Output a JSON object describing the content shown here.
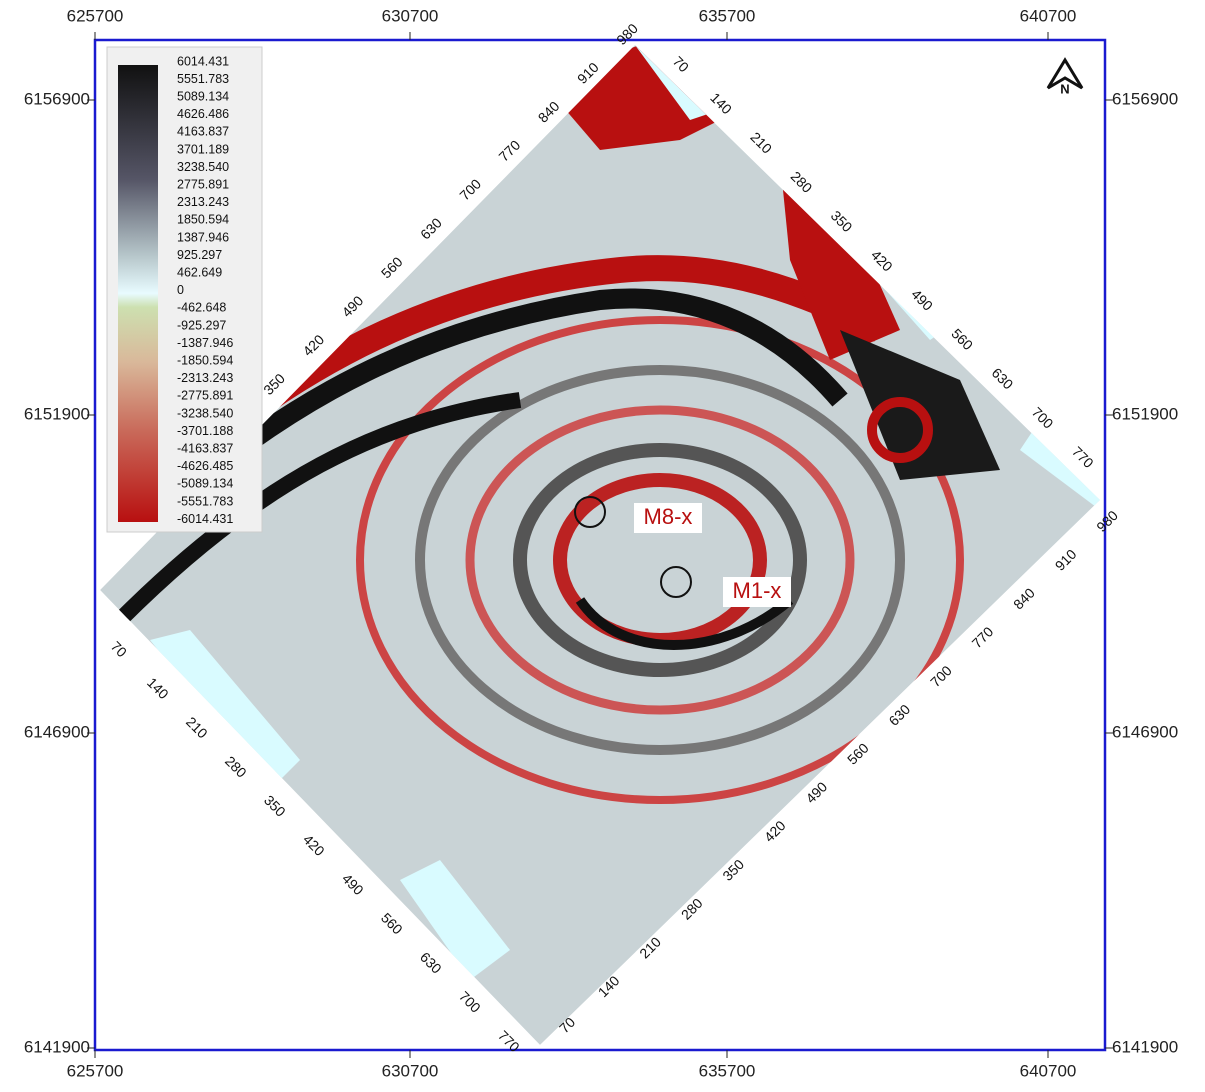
{
  "axes": {
    "top": [
      "625700",
      "630700",
      "635700",
      "640700"
    ],
    "bottom": [
      "625700",
      "630700",
      "635700",
      "640700"
    ],
    "left": [
      "6156900",
      "6151900",
      "6146900",
      "6141900"
    ],
    "right": [
      "6156900",
      "6151900",
      "6146900",
      "6141900"
    ]
  },
  "legend": [
    "6014.431",
    "5551.783",
    "5089.134",
    "4626.486",
    "4163.837",
    "3701.189",
    "3238.540",
    "2775.891",
    "2313.243",
    "1850.594",
    "1387.946",
    "925.297",
    "462.649",
    "0",
    "-462.648",
    "-925.297",
    "-1387.946",
    "-1850.594",
    "-2313.243",
    "-2775.891",
    "-3238.540",
    "-3701.188",
    "-4163.837",
    "-4626.485",
    "-5089.134",
    "-5551.783",
    "-6014.431"
  ],
  "north": "N",
  "wells": [
    {
      "label": "M8-x"
    },
    {
      "label": "M1-x"
    }
  ],
  "edge_labels": {
    "nw": [
      "350",
      "420",
      "490",
      "560",
      "630",
      "700",
      "770",
      "840",
      "910",
      "980"
    ],
    "ne": [
      "70",
      "140",
      "210",
      "280",
      "350",
      "420",
      "490",
      "560",
      "630",
      "700",
      "770"
    ],
    "se": [
      "980",
      "910",
      "840",
      "770",
      "700",
      "630",
      "560",
      "490",
      "420",
      "350",
      "280",
      "210",
      "140",
      "70"
    ],
    "sw": [
      "70",
      "140",
      "210",
      "280",
      "350",
      "420",
      "490",
      "560",
      "630",
      "700",
      "770"
    ]
  }
}
